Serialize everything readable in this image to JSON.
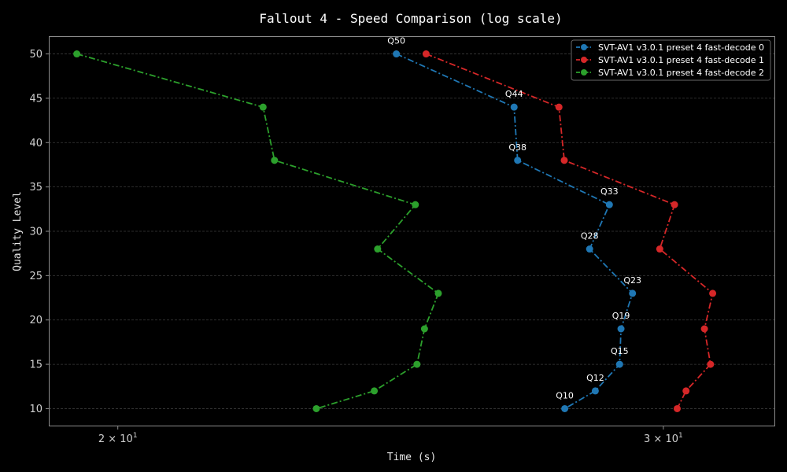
{
  "chart_data": {
    "type": "line",
    "title": "Fallout 4 - Speed Comparison (log scale)",
    "xlabel": "Time (s)",
    "ylabel": "Quality Level",
    "xscale": "log",
    "xlim": [
      19.0,
      32.6
    ],
    "ylim": [
      8,
      52
    ],
    "grid": true,
    "legend_position": "top-right",
    "x_ticks": [
      {
        "value": 20,
        "base": "2 × 10",
        "exp": "1"
      },
      {
        "value": 30,
        "base": "3 × 10",
        "exp": "1"
      }
    ],
    "y_ticks": [
      10,
      15,
      20,
      25,
      30,
      35,
      40,
      45,
      50
    ],
    "series": [
      {
        "name": "SVT-AV1 v3.0.1 preset 4 fast-decode 0",
        "color": "#1f77b4",
        "points": [
          {
            "q": 50,
            "x": 24.6,
            "label": "Q50"
          },
          {
            "q": 44,
            "x": 26.85,
            "label": "Q44"
          },
          {
            "q": 38,
            "x": 26.92,
            "label": "Q38"
          },
          {
            "q": 33,
            "x": 28.82,
            "label": "Q33"
          },
          {
            "q": 28,
            "x": 28.4,
            "label": "Q28"
          },
          {
            "q": 23,
            "x": 29.32,
            "label": "Q23"
          },
          {
            "q": 19,
            "x": 29.07,
            "label": "Q19"
          },
          {
            "q": 15,
            "x": 29.04,
            "label": "Q15"
          },
          {
            "q": 12,
            "x": 28.52,
            "label": "Q12"
          },
          {
            "q": 10,
            "x": 27.88,
            "label": "Q10"
          }
        ]
      },
      {
        "name": "SVT-AV1 v3.0.1 preset 4 fast-decode 1",
        "color": "#d62728",
        "points": [
          {
            "q": 50,
            "x": 25.15
          },
          {
            "q": 44,
            "x": 27.76
          },
          {
            "q": 38,
            "x": 27.87
          },
          {
            "q": 33,
            "x": 30.25
          },
          {
            "q": 28,
            "x": 29.92
          },
          {
            "q": 23,
            "x": 31.12
          },
          {
            "q": 19,
            "x": 30.93
          },
          {
            "q": 15,
            "x": 31.07
          },
          {
            "q": 12,
            "x": 30.51
          },
          {
            "q": 10,
            "x": 30.31
          }
        ]
      },
      {
        "name": "SVT-AV1 v3.0.1 preset 4 fast-decode 2",
        "color": "#2ca02c",
        "points": [
          {
            "q": 50,
            "x": 19.4
          },
          {
            "q": 44,
            "x": 22.28
          },
          {
            "q": 38,
            "x": 22.47
          },
          {
            "q": 33,
            "x": 24.95
          },
          {
            "q": 28,
            "x": 24.26
          },
          {
            "q": 23,
            "x": 25.38
          },
          {
            "q": 19,
            "x": 25.12
          },
          {
            "q": 15,
            "x": 24.98
          },
          {
            "q": 12,
            "x": 24.2
          },
          {
            "q": 10,
            "x": 23.18
          }
        ]
      }
    ]
  }
}
